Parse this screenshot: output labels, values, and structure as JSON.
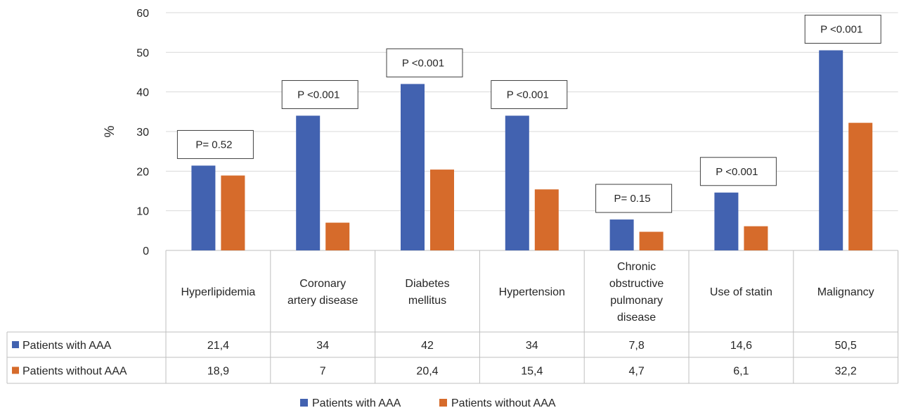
{
  "chart_data": {
    "type": "bar",
    "title": "",
    "xlabel": "",
    "ylabel": "%",
    "ylim": [
      0,
      60
    ],
    "yticks": [
      0,
      10,
      20,
      30,
      40,
      50,
      60
    ],
    "grid": true,
    "legend_position": "bottom",
    "categories": [
      "Hyperlipidemia",
      "Coronary artery disease",
      "Diabetes mellitus",
      "Hypertension",
      "Chronic obstructive pulmonary disease",
      "Use of statin",
      "Malignancy"
    ],
    "category_lines": [
      [
        "Hyperlipidemia"
      ],
      [
        "Coronary",
        "artery disease"
      ],
      [
        "Diabetes",
        "mellitus"
      ],
      [
        "Hypertension"
      ],
      [
        "Chronic",
        "obstructive",
        "pulmonary",
        "disease"
      ],
      [
        "Use of statin"
      ],
      [
        "Malignancy"
      ]
    ],
    "series": [
      {
        "name": "Patients with AAA",
        "color": "#4262b0",
        "values": [
          21.4,
          34,
          42,
          34,
          7.8,
          14.6,
          50.5
        ],
        "table_values": [
          "21,4",
          "34",
          "42",
          "34",
          "7,8",
          "14,6",
          "50,5"
        ]
      },
      {
        "name": "Patients without AAA",
        "color": "#d66b2b",
        "values": [
          18.9,
          7,
          20.4,
          15.4,
          4.7,
          6.1,
          32.2
        ],
        "table_values": [
          "18,9",
          "7",
          "20,4",
          "15,4",
          "4,7",
          "6,1",
          "32,2"
        ]
      }
    ],
    "annotations": [
      "P= 0.52",
      "P <0.001",
      "P <0.001",
      "P <0.001",
      "P= 0.15",
      "P <0.001",
      "P <0.001"
    ]
  }
}
